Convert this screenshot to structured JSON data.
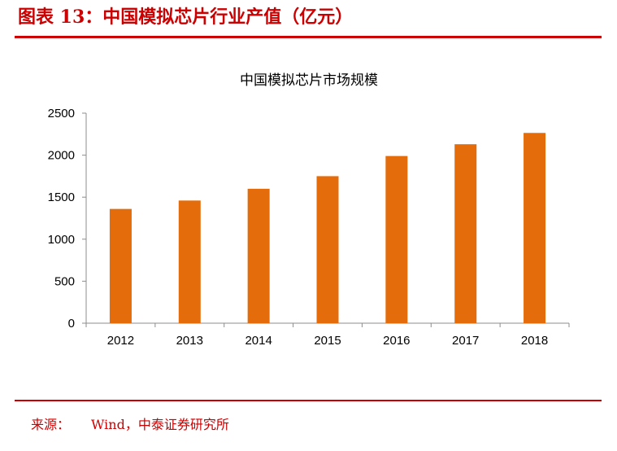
{
  "page": {
    "figure_title": "图表 13：中国模拟芯片行业产值（亿元）",
    "source_label": "来源：",
    "source_text": "Wind，中泰证券研究所",
    "accent_color": "#cc0000"
  },
  "chart_data": {
    "type": "bar",
    "title": "中国模拟芯片市场规模",
    "xlabel": "",
    "ylabel": "",
    "categories": [
      "2012",
      "2013",
      "2014",
      "2015",
      "2016",
      "2017",
      "2018"
    ],
    "values": [
      1360,
      1460,
      1600,
      1750,
      1990,
      2130,
      2265
    ],
    "ylim": [
      0,
      2500
    ],
    "yticks": [
      "0",
      "500",
      "1000",
      "1500",
      "2000",
      "2500"
    ],
    "bar_color": "#e46c0a",
    "grid": false,
    "legend": "none"
  }
}
